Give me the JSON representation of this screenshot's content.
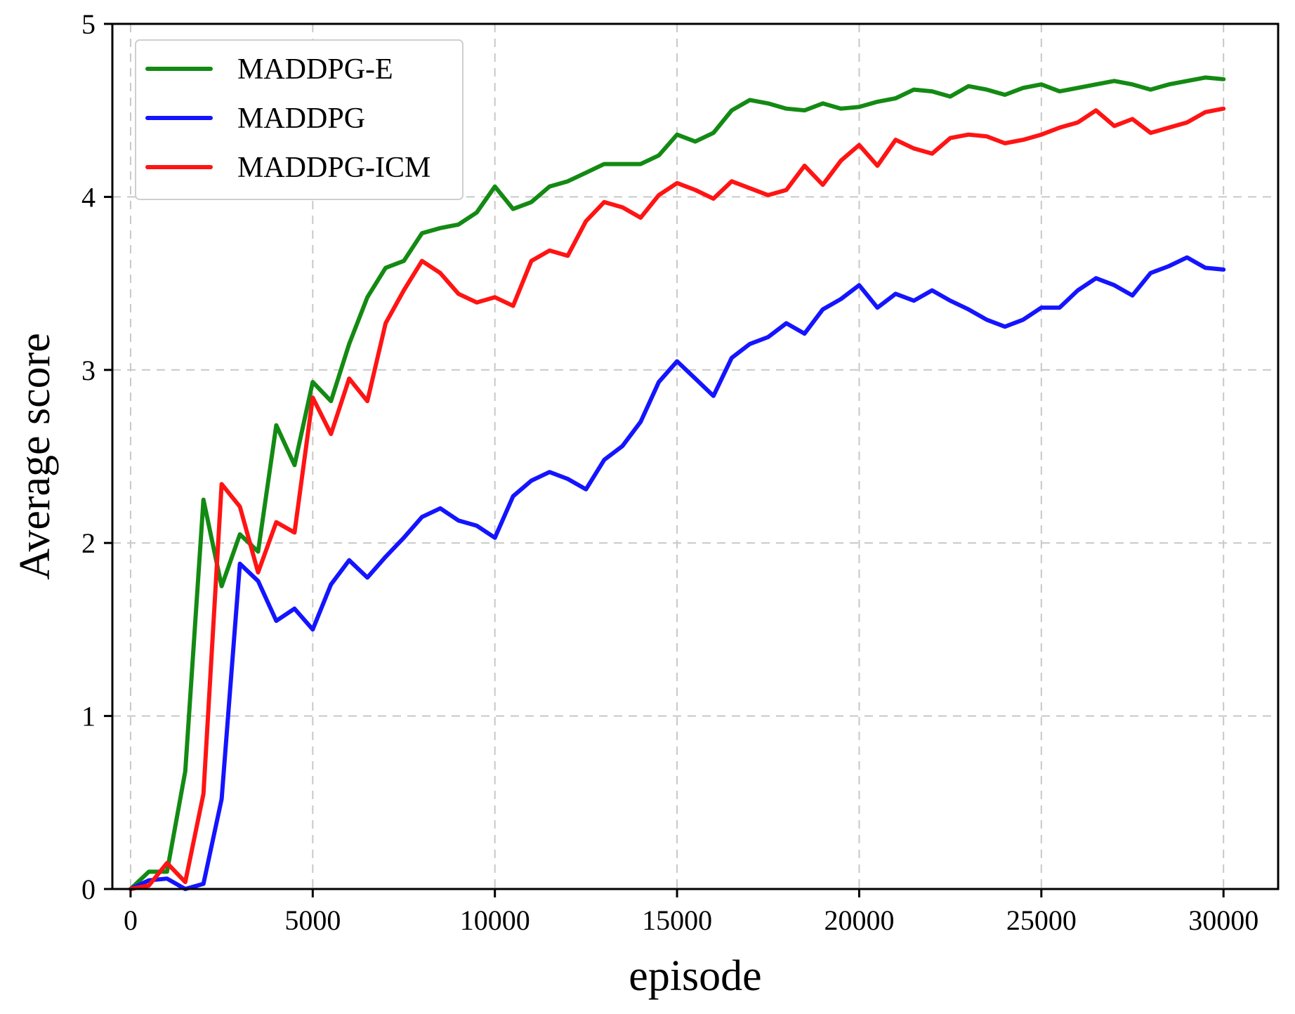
{
  "chart_data": {
    "type": "line",
    "title": "",
    "xlabel": "episode",
    "ylabel": "Average score",
    "xlim": [
      -500,
      31500
    ],
    "ylim": [
      0,
      5
    ],
    "xticks": [
      0,
      5000,
      10000,
      15000,
      20000,
      25000,
      30000
    ],
    "xtick_labels": [
      "0",
      "5000",
      "10000",
      "15000",
      "20000",
      "25000",
      "30000"
    ],
    "yticks": [
      0,
      1,
      2,
      3,
      4,
      5
    ],
    "ytick_labels": [
      "0",
      "1",
      "2",
      "3",
      "4",
      "5"
    ],
    "grid": true,
    "legend_position": "top-left",
    "x": [
      0,
      500,
      1000,
      1500,
      2000,
      2500,
      3000,
      3500,
      4000,
      4500,
      5000,
      5500,
      6000,
      6500,
      7000,
      7500,
      8000,
      8500,
      9000,
      9500,
      10000,
      10500,
      11000,
      11500,
      12000,
      12500,
      13000,
      13500,
      14000,
      14500,
      15000,
      15500,
      16000,
      16500,
      17000,
      17500,
      18000,
      18500,
      19000,
      19500,
      20000,
      20500,
      21000,
      21500,
      22000,
      22500,
      23000,
      23500,
      24000,
      24500,
      25000,
      25500,
      26000,
      26500,
      27000,
      27500,
      28000,
      28500,
      29000,
      29500,
      30000
    ],
    "series": [
      {
        "name": "MADDPG-E",
        "color": "#138a13",
        "values": [
          0.0,
          0.1,
          0.1,
          0.68,
          2.25,
          1.75,
          2.05,
          1.95,
          2.68,
          2.45,
          2.93,
          2.82,
          3.15,
          3.42,
          3.59,
          3.63,
          3.79,
          3.82,
          3.84,
          3.91,
          4.06,
          3.93,
          3.97,
          4.06,
          4.09,
          4.14,
          4.19,
          4.19,
          4.19,
          4.24,
          4.36,
          4.32,
          4.37,
          4.5,
          4.56,
          4.54,
          4.51,
          4.5,
          4.54,
          4.51,
          4.52,
          4.55,
          4.57,
          4.62,
          4.61,
          4.58,
          4.64,
          4.62,
          4.59,
          4.63,
          4.65,
          4.61,
          4.63,
          4.65,
          4.67,
          4.65,
          4.62,
          4.65,
          4.67,
          4.69,
          4.68
        ]
      },
      {
        "name": "MADDPG",
        "color": "#1414ff",
        "values": [
          0.0,
          0.05,
          0.06,
          0.0,
          0.03,
          0.52,
          1.88,
          1.78,
          1.55,
          1.62,
          1.5,
          1.76,
          1.9,
          1.8,
          1.92,
          2.03,
          2.15,
          2.2,
          2.13,
          2.1,
          2.03,
          2.27,
          2.36,
          2.41,
          2.37,
          2.31,
          2.48,
          2.56,
          2.7,
          2.93,
          3.05,
          2.95,
          2.85,
          3.07,
          3.15,
          3.19,
          3.27,
          3.21,
          3.35,
          3.41,
          3.49,
          3.36,
          3.44,
          3.4,
          3.46,
          3.4,
          3.35,
          3.29,
          3.25,
          3.29,
          3.36,
          3.36,
          3.46,
          3.53,
          3.49,
          3.43,
          3.56,
          3.6,
          3.65,
          3.59,
          3.58
        ]
      },
      {
        "name": "MADDPG-ICM",
        "color": "#ff1414",
        "values": [
          0.0,
          0.02,
          0.15,
          0.04,
          0.55,
          2.34,
          2.21,
          1.83,
          2.12,
          2.06,
          2.84,
          2.63,
          2.95,
          2.82,
          3.27,
          3.46,
          3.63,
          3.56,
          3.44,
          3.39,
          3.42,
          3.37,
          3.63,
          3.69,
          3.66,
          3.86,
          3.97,
          3.94,
          3.88,
          4.01,
          4.08,
          4.04,
          3.99,
          4.09,
          4.05,
          4.01,
          4.04,
          4.18,
          4.07,
          4.21,
          4.3,
          4.18,
          4.33,
          4.28,
          4.25,
          4.34,
          4.36,
          4.35,
          4.31,
          4.33,
          4.36,
          4.4,
          4.43,
          4.5,
          4.41,
          4.45,
          4.37,
          4.4,
          4.43,
          4.49,
          4.51
        ]
      }
    ]
  }
}
